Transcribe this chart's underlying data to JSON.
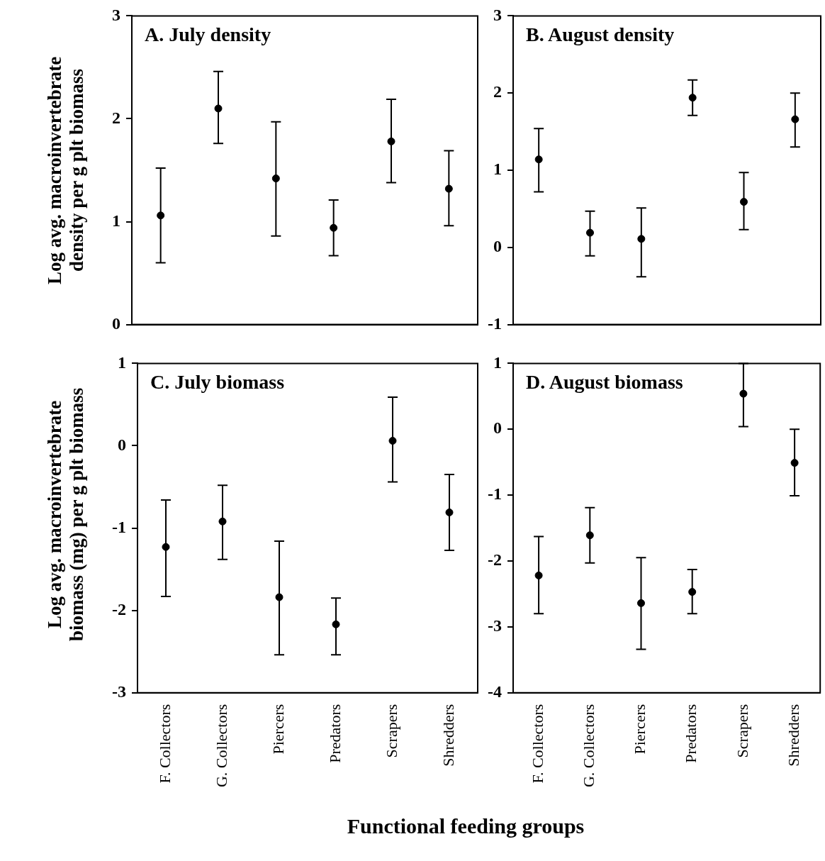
{
  "chart_data": [
    {
      "type": "scatter",
      "title": "A. July density",
      "ylabel": "Log avg. macroinvertebrate density per g plt biomass",
      "categories": [
        null,
        null,
        null,
        null,
        null,
        null
      ],
      "values": [
        1.06,
        2.1,
        1.42,
        0.94,
        1.78,
        1.32
      ],
      "errors": [
        [
          0.6,
          1.52
        ],
        [
          1.76,
          2.46
        ],
        [
          0.86,
          1.97
        ],
        [
          0.67,
          1.21
        ],
        [
          1.38,
          2.19
        ],
        [
          0.96,
          1.69
        ]
      ],
      "color": "#000000",
      "marker": "circle",
      "ylim": [
        0,
        3
      ],
      "yticks": [
        0,
        1,
        2,
        3
      ],
      "tick_labels": "y"
    },
    {
      "type": "scatter",
      "title": "B. August density",
      "categories": [
        null,
        null,
        null,
        null,
        null,
        null
      ],
      "values": [
        1.14,
        0.19,
        0.11,
        1.94,
        0.59,
        1.66
      ],
      "errors": [
        [
          0.72,
          1.54
        ],
        [
          -0.11,
          0.47
        ],
        [
          -0.38,
          0.51
        ],
        [
          1.71,
          2.17
        ],
        [
          0.23,
          0.97
        ],
        [
          1.3,
          2.0
        ]
      ],
      "color": "#000000",
      "marker": "circle",
      "ylim": [
        -1,
        3
      ],
      "yticks": [
        -1,
        0,
        1,
        2,
        3
      ],
      "tick_labels": "y"
    },
    {
      "type": "scatter",
      "title": "C. July biomass",
      "ylabel": "Log avg. macroinvertebrate biomass (mg) per g plt biomass",
      "xlabel": "Functional feeding groups",
      "categories": [
        "F. Collectors",
        "G. Collectors",
        "Piercers",
        "Predators",
        "Scrapers",
        "Shredders"
      ],
      "values": [
        -1.23,
        -0.92,
        -1.84,
        -2.17,
        0.06,
        -0.81
      ],
      "errors": [
        [
          -1.83,
          -0.66
        ],
        [
          -1.38,
          -0.48
        ],
        [
          -2.54,
          -1.16
        ],
        [
          -2.54,
          -1.85
        ],
        [
          -0.44,
          0.59
        ],
        [
          -1.27,
          -0.35
        ]
      ],
      "color": "#000000",
      "marker": "circle",
      "ylim": [
        -3,
        1
      ],
      "yticks": [
        -3,
        -2,
        -1,
        0,
        1
      ]
    },
    {
      "type": "scatter",
      "title": "D. August biomass",
      "categories": [
        "F. Collectors",
        "G. Collectors",
        "Piercers",
        "Predators",
        "Scrapers",
        "Shredders"
      ],
      "values": [
        -2.22,
        -1.61,
        -2.64,
        -2.47,
        0.54,
        -0.51
      ],
      "errors": [
        [
          -2.8,
          -1.63
        ],
        [
          -2.03,
          -1.19
        ],
        [
          -3.34,
          -1.95
        ],
        [
          -2.8,
          -2.13
        ],
        [
          0.04,
          1.0
        ],
        [
          -1.01,
          0.0
        ]
      ],
      "color": "#000000",
      "marker": "circle",
      "ylim": [
        -4,
        1
      ],
      "yticks": [
        -4,
        -3,
        -2,
        -1,
        0,
        1
      ]
    }
  ]
}
